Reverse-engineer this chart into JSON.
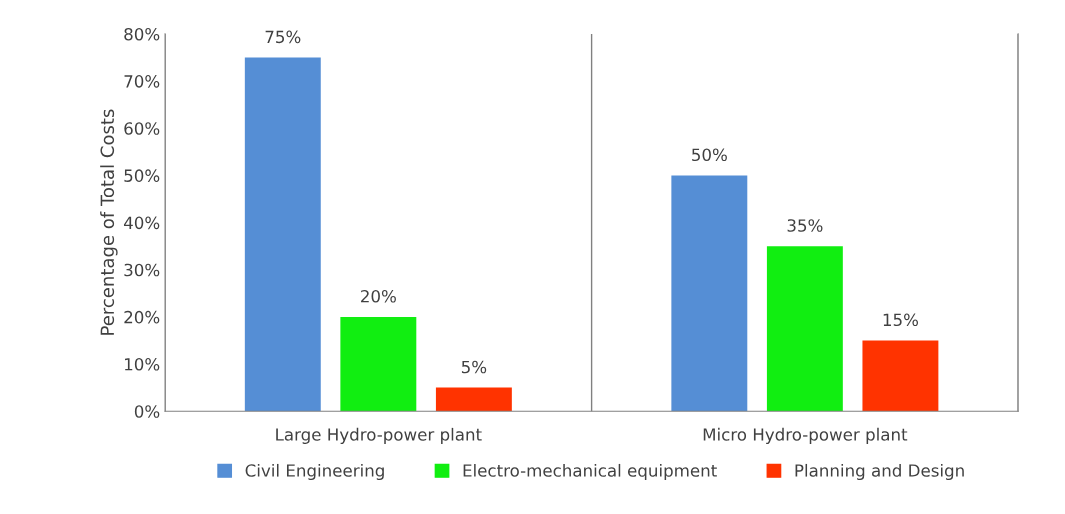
{
  "chart_data": {
    "type": "bar",
    "ylabel": "Percentage of Total Costs",
    "categories": [
      "Large Hydro-power plant",
      "Micro Hydro-power plant"
    ],
    "series": [
      {
        "name": "Civil Engineering",
        "color": "#558ed5",
        "values": [
          75,
          50
        ],
        "value_labels": [
          "75%",
          "50%"
        ]
      },
      {
        "name": "Electro-mechanical equipment",
        "color": "#11ee11",
        "values": [
          20,
          35
        ],
        "value_labels": [
          "20%",
          "35%"
        ]
      },
      {
        "name": "Planning and Design",
        "color": "#ff3300",
        "values": [
          5,
          15
        ],
        "value_labels": [
          "5%",
          "15%"
        ]
      }
    ],
    "ylim": [
      0,
      80
    ],
    "yticks": [
      {
        "value": 0,
        "label": "0%"
      },
      {
        "value": 10,
        "label": "10%"
      },
      {
        "value": 20,
        "label": "20%"
      },
      {
        "value": 30,
        "label": "30%"
      },
      {
        "value": 40,
        "label": "40%"
      },
      {
        "value": 50,
        "label": "50%"
      },
      {
        "value": 60,
        "label": "60%"
      },
      {
        "value": 70,
        "label": "70%"
      },
      {
        "value": 80,
        "label": "80%"
      }
    ],
    "grid": "x",
    "legend": "bottom"
  }
}
